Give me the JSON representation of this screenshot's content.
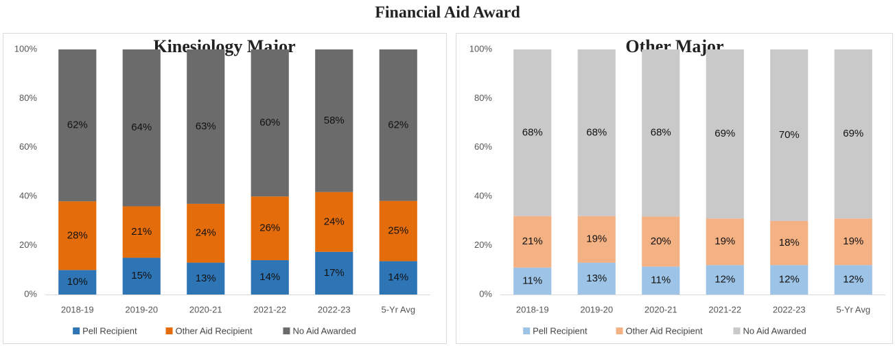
{
  "title": "Financial Aid Award",
  "chart_data": [
    {
      "type": "bar",
      "stacked": true,
      "title": "Kinesiology Major",
      "categories": [
        "2018-19",
        "2019-20",
        "2020-21",
        "2021-22",
        "2022-23",
        "5-Yr Avg"
      ],
      "series": [
        {
          "name": "Pell Recipient",
          "color": "#2e75b6",
          "values": [
            10,
            15,
            13,
            14,
            17.4,
            13.6
          ],
          "value_labels": [
            "10%",
            "15%",
            "13%",
            "14%",
            "17%",
            "14%"
          ]
        },
        {
          "name": "Other Aid Recipient",
          "color": "#e46c0a",
          "values": [
            28,
            21,
            24,
            26,
            24.4,
            24.6
          ],
          "value_labels": [
            "28%",
            "21%",
            "24%",
            "26%",
            "24%",
            "25%"
          ]
        },
        {
          "name": "No Aid Awarded",
          "color": "#6b6b6b",
          "values": [
            62,
            64,
            63,
            60,
            58.2,
            61.8
          ],
          "value_labels": [
            "62%",
            "64%",
            "63%",
            "60%",
            "58%",
            "62%"
          ]
        }
      ],
      "ylim": [
        0,
        100
      ],
      "yticks": [
        {
          "value": 0,
          "label": "0%"
        },
        {
          "value": 20,
          "label": "20%"
        },
        {
          "value": 40,
          "label": "40%"
        },
        {
          "value": 60,
          "label": "60%"
        },
        {
          "value": 80,
          "label": "80%"
        },
        {
          "value": 100,
          "label": "100%"
        }
      ],
      "legend": "bottom"
    },
    {
      "type": "bar",
      "stacked": true,
      "title": "Other Major",
      "categories": [
        "2018-19",
        "2019-20",
        "2020-21",
        "2021-22",
        "2022-23",
        "5-Yr Avg"
      ],
      "series": [
        {
          "name": "Pell Recipient",
          "color": "#9dc3e6",
          "values": [
            11,
            13,
            11.4,
            12,
            12,
            12
          ],
          "value_labels": [
            "11%",
            "13%",
            "11%",
            "12%",
            "12%",
            "12%"
          ]
        },
        {
          "name": "Other Aid Recipient",
          "color": "#f4b183",
          "values": [
            21,
            19,
            20.4,
            19,
            18,
            19
          ],
          "value_labels": [
            "21%",
            "19%",
            "20%",
            "19%",
            "18%",
            "19%"
          ]
        },
        {
          "name": "No Aid Awarded",
          "color": "#c9c9c9",
          "values": [
            68,
            68,
            68.2,
            69,
            70,
            69
          ],
          "value_labels": [
            "68%",
            "68%",
            "68%",
            "69%",
            "70%",
            "69%"
          ]
        }
      ],
      "ylim": [
        0,
        100
      ],
      "yticks": [
        {
          "value": 0,
          "label": "0%"
        },
        {
          "value": 20,
          "label": "20%"
        },
        {
          "value": 40,
          "label": "40%"
        },
        {
          "value": 60,
          "label": "60%"
        },
        {
          "value": 80,
          "label": "80%"
        },
        {
          "value": 100,
          "label": "100%"
        }
      ],
      "legend": "bottom"
    }
  ]
}
